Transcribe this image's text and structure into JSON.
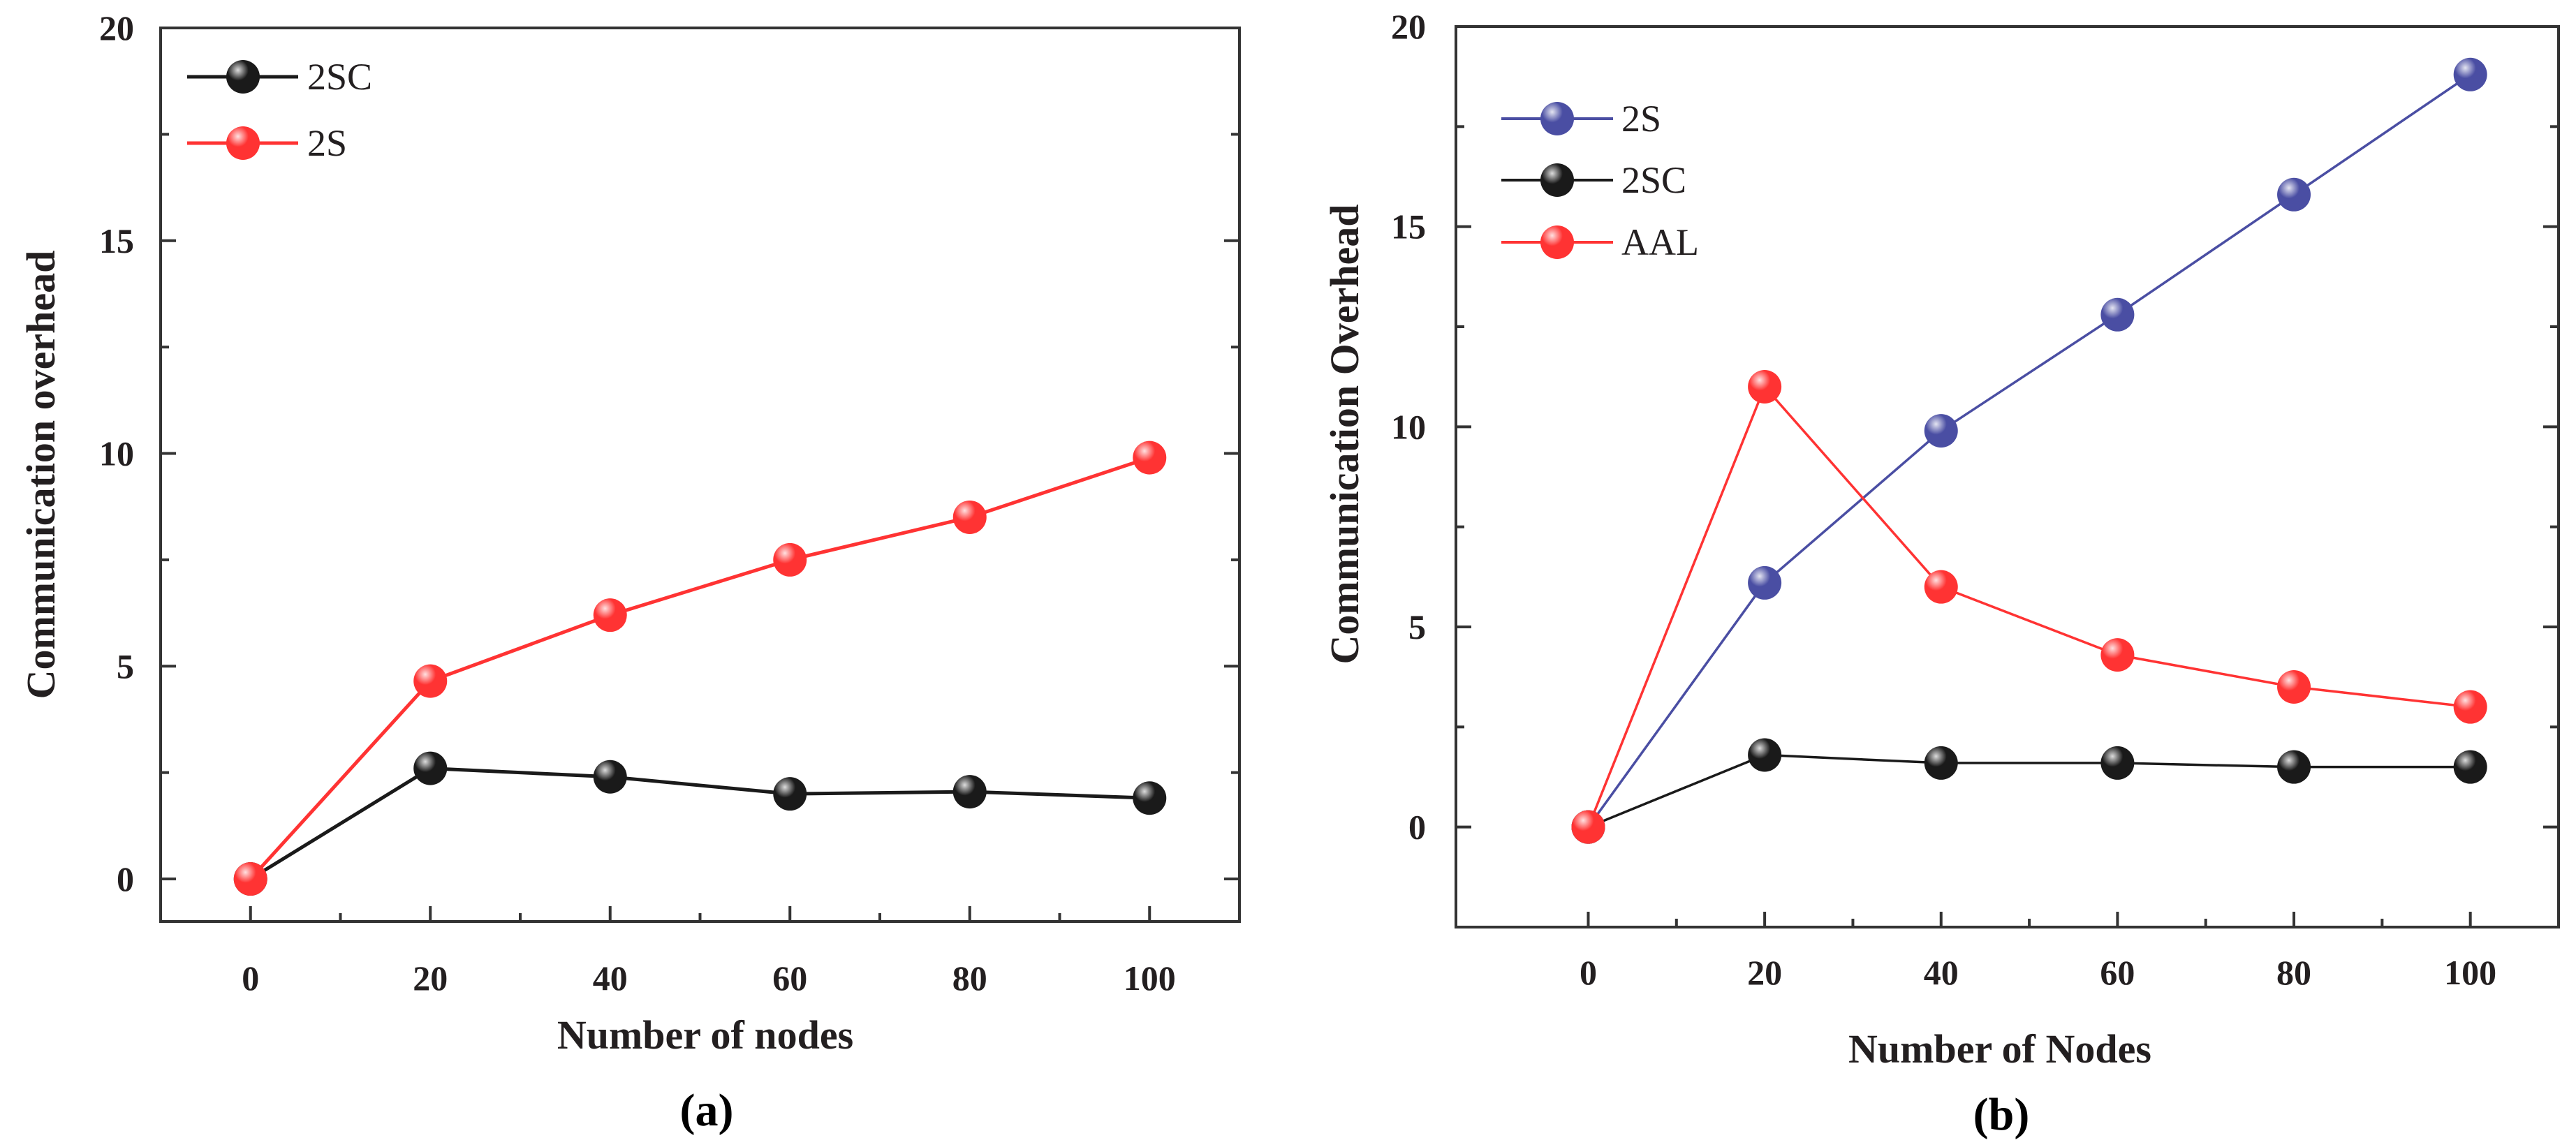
{
  "chart_data": [
    {
      "type": "line",
      "title": "",
      "caption": "(a)",
      "xlabel": "Number of nodes",
      "ylabel": "Communication overhead",
      "x": [
        0,
        20,
        40,
        60,
        80,
        100
      ],
      "xlim": [
        -10,
        110
      ],
      "ylim": [
        -1,
        20
      ],
      "xticks": [
        "0",
        "20",
        "40",
        "60",
        "80",
        "100"
      ],
      "yticks": [
        "0",
        "5",
        "10",
        "15",
        "20"
      ],
      "grid": false,
      "legend_position": "top-left",
      "series": [
        {
          "name": "2SC",
          "color": "#1a1a1a",
          "values": [
            0,
            2.6,
            2.4,
            2.0,
            2.05,
            1.9
          ]
        },
        {
          "name": "2S",
          "color": "#ff3333",
          "values": [
            0,
            4.65,
            6.2,
            7.5,
            8.5,
            9.9
          ]
        }
      ]
    },
    {
      "type": "line",
      "title": "",
      "caption": "(b)",
      "xlabel": "Number of Nodes",
      "ylabel": "Communication Overhead",
      "x": [
        0,
        20,
        40,
        60,
        80,
        100
      ],
      "xlim": [
        -15,
        110
      ],
      "ylim": [
        -2.5,
        20
      ],
      "xticks": [
        "0",
        "20",
        "40",
        "60",
        "80",
        "100"
      ],
      "yticks": [
        "0",
        "5",
        "10",
        "15",
        "20"
      ],
      "grid": false,
      "legend_position": "top-left",
      "series": [
        {
          "name": "2S",
          "color": "#4a4ea3",
          "values": [
            0,
            6.1,
            9.9,
            12.8,
            15.8,
            18.8
          ]
        },
        {
          "name": "2SC",
          "color": "#1a1a1a",
          "values": [
            0,
            1.8,
            1.6,
            1.6,
            1.5,
            1.5
          ]
        },
        {
          "name": "AAL",
          "color": "#ff3333",
          "values": [
            0,
            11.0,
            6.0,
            4.3,
            3.5,
            3.0
          ]
        }
      ]
    }
  ]
}
